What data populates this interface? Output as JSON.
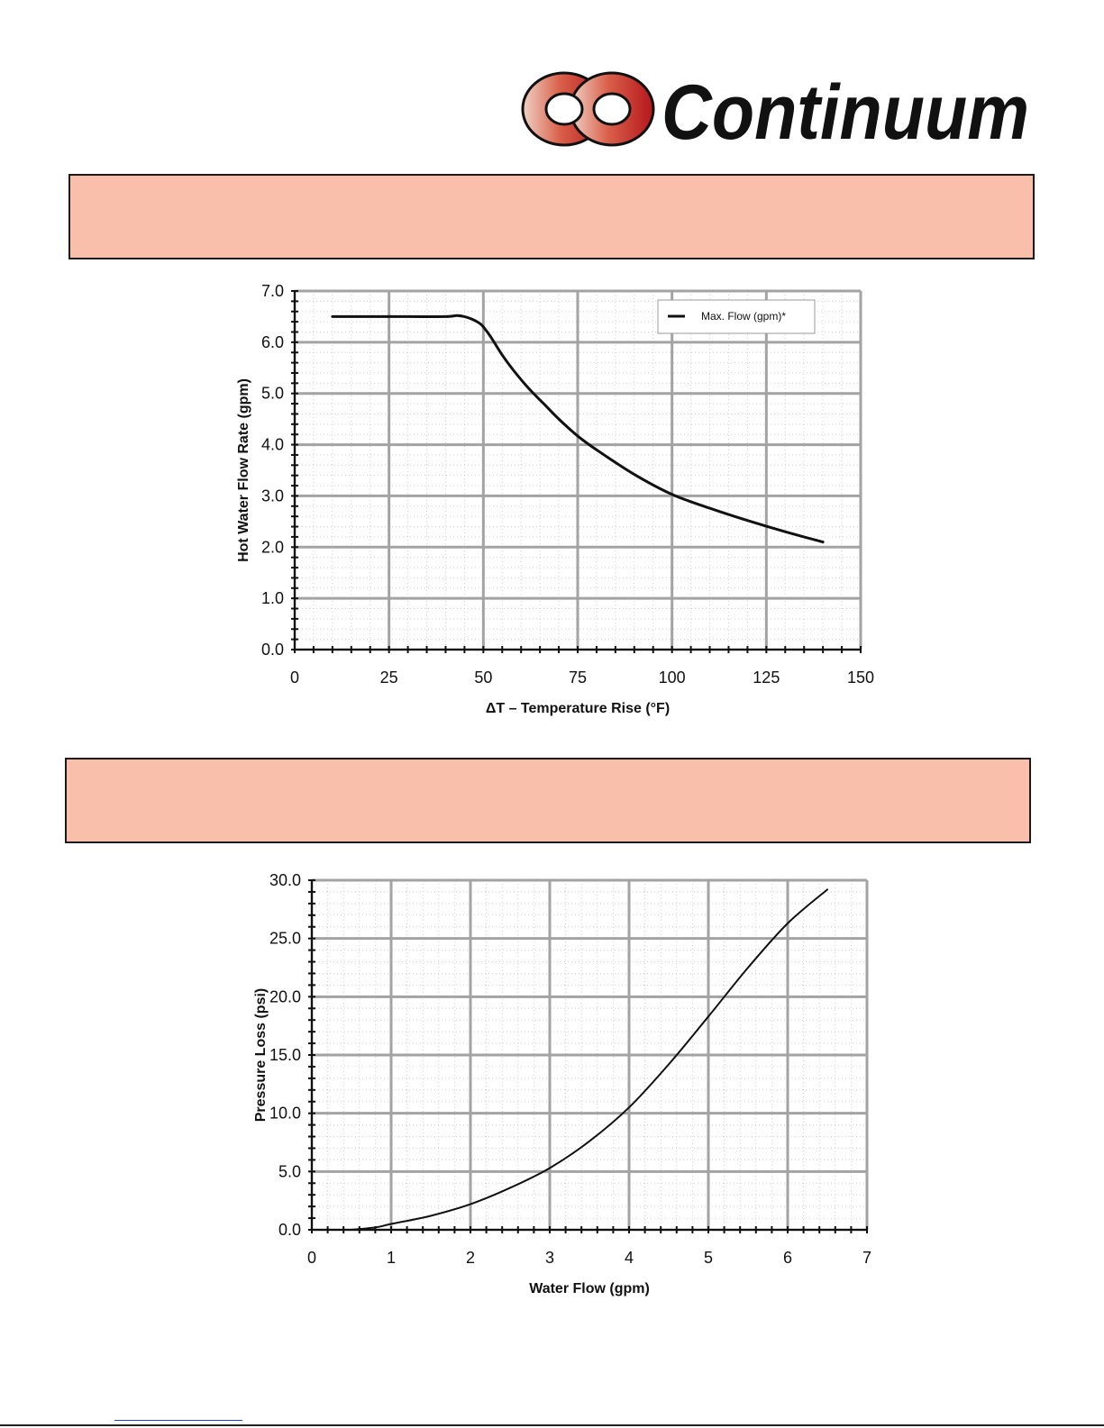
{
  "logo": {
    "brand_text": "Continuum"
  },
  "chart_data": [
    {
      "type": "line",
      "title": "",
      "xlabel": "ΔT – Temperature Rise (°F)",
      "ylabel": "Hot Water Flow Rate (gpm)",
      "xlim": [
        0,
        150
      ],
      "ylim": [
        0,
        7
      ],
      "x_ticks": [
        "0",
        "25",
        "50",
        "75",
        "100",
        "125",
        "150"
      ],
      "y_ticks": [
        "0.0",
        "1.0",
        "2.0",
        "3.0",
        "4.0",
        "5.0",
        "6.0",
        "7.0"
      ],
      "grid": true,
      "legend": {
        "position": "top-right",
        "entries": [
          "Max. Flow (gpm)*"
        ]
      },
      "series": [
        {
          "name": "Max. Flow (gpm)*",
          "x": [
            10,
            20,
            30,
            40,
            43,
            45,
            47,
            49,
            50,
            52,
            55,
            58,
            62,
            66,
            70,
            75,
            80,
            90,
            100,
            110,
            120,
            130,
            140
          ],
          "y": [
            6.5,
            6.5,
            6.5,
            6.5,
            6.52,
            6.5,
            6.45,
            6.37,
            6.3,
            6.1,
            5.75,
            5.45,
            5.1,
            4.8,
            4.5,
            4.17,
            3.9,
            3.42,
            3.03,
            2.76,
            2.52,
            2.3,
            2.1
          ]
        }
      ]
    },
    {
      "type": "line",
      "title": "",
      "xlabel": "Water Flow (gpm)",
      "ylabel": "Pressure Loss (psi)",
      "xlim": [
        0,
        7
      ],
      "ylim": [
        0,
        30
      ],
      "x_ticks": [
        "0",
        "1",
        "2",
        "3",
        "4",
        "5",
        "6",
        "7"
      ],
      "y_ticks": [
        "0.0",
        "5.0",
        "10.0",
        "15.0",
        "20.0",
        "25.0",
        "30.0"
      ],
      "grid": true,
      "series": [
        {
          "x": [
            0.5,
            0.8,
            1.0,
            1.5,
            2.0,
            2.5,
            3.0,
            3.5,
            4.0,
            4.5,
            5.0,
            5.5,
            6.0,
            6.5
          ],
          "y": [
            0.0,
            0.2,
            0.5,
            1.2,
            2.2,
            3.6,
            5.3,
            7.6,
            10.5,
            14.2,
            18.3,
            22.5,
            26.3,
            29.2
          ]
        }
      ]
    }
  ]
}
